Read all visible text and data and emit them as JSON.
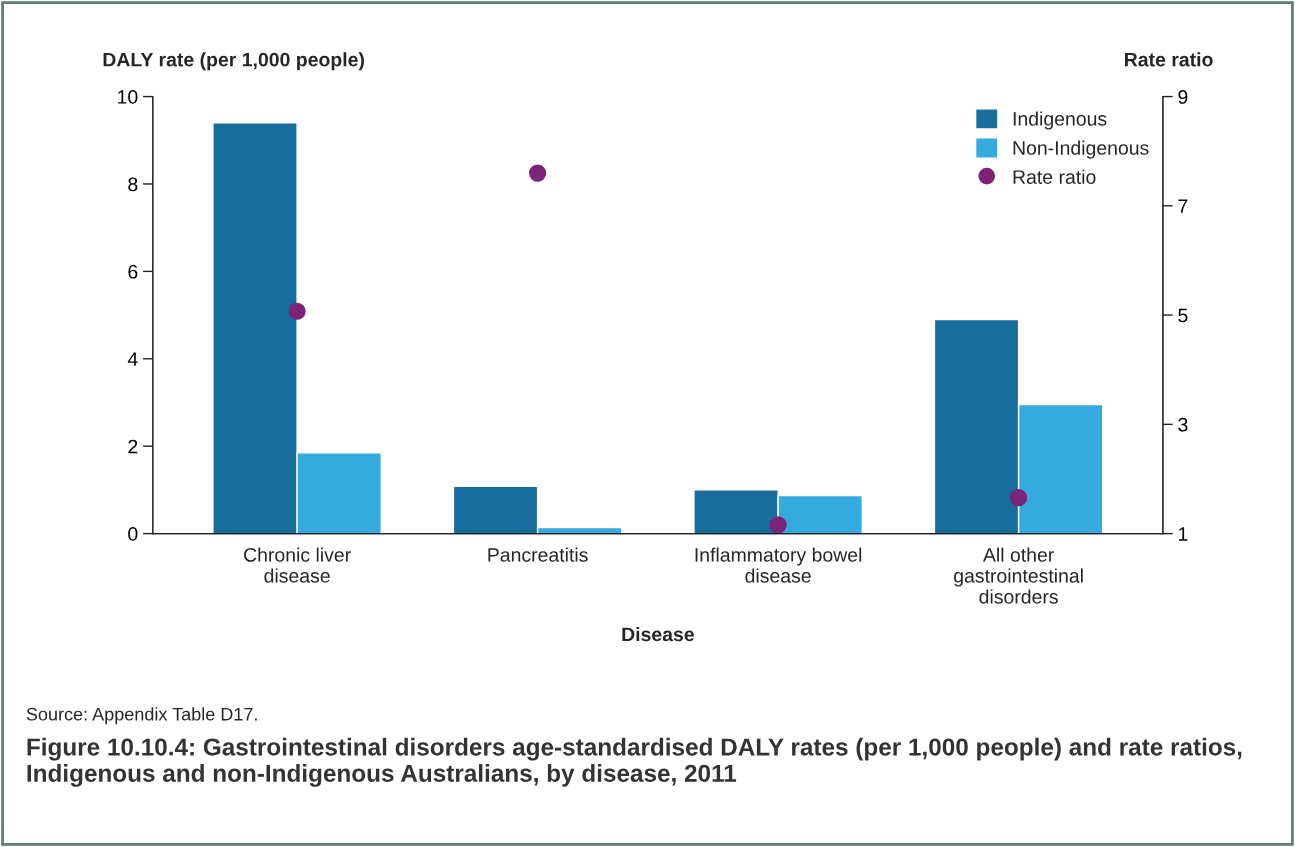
{
  "chart_data": {
    "type": "bar",
    "title": "Figure 10.10.4: Gastrointestinal disorders age-standardised DALY rates (per 1,000 people) and rate ratios, Indigenous and non-Indigenous Australians, by disease, 2011",
    "xlabel": "Disease",
    "ylabel": "DALY rate (per 1,000 people)",
    "y2label": "Rate ratio",
    "categories": [
      "Chronic liver\ndisease",
      "Pancreatitis",
      "Inflammatory bowel\ndisease",
      "All other\ngastrointestinal\ndisorders"
    ],
    "series": [
      {
        "name": "Indigenous",
        "color": "#176d9c",
        "values": [
          9.4,
          1.08,
          1.0,
          4.9
        ]
      },
      {
        "name": "Non-Indigenous",
        "color": "#35aadf",
        "values": [
          1.85,
          0.14,
          0.87,
          2.95
        ]
      },
      {
        "name": "Rate ratio",
        "type": "scatter",
        "axis": "y2",
        "color": "#7b2479",
        "marker": "circle",
        "x": [
          "Chronic liver\ndisease",
          "Pancreatitis",
          "Inflammatory bowel\ndisease",
          "All other\ngastrointestinal\ndisorders"
        ],
        "values": [
          5.07,
          7.6,
          1.16,
          1.66
        ]
      }
    ],
    "ylim": [
      0,
      10
    ],
    "yticks": [
      0,
      2,
      4,
      6,
      8,
      10
    ],
    "y2lim": [
      1,
      9
    ],
    "y2ticks": [
      1,
      3,
      5,
      7,
      9
    ],
    "legend": "top right",
    "grid": false,
    "annotations": [
      "Source: Appendix Table D17."
    ]
  }
}
